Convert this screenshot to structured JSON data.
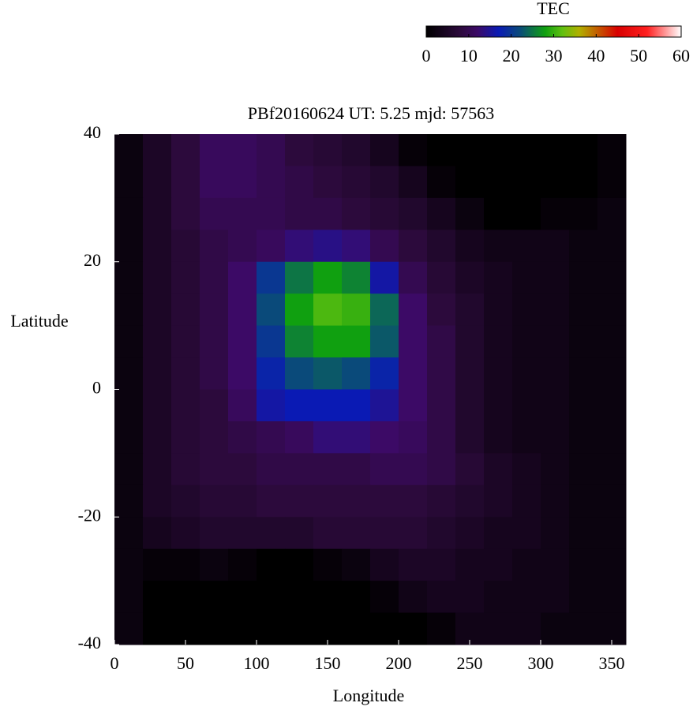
{
  "chart_data": {
    "type": "heatmap",
    "title": "PBf20160624  UT: 5.25  mjd: 57563",
    "x_label": "Longitude",
    "y_label": "Latitude",
    "colorbar_label": "TEC",
    "x": [
      10,
      30,
      50,
      70,
      90,
      110,
      130,
      150,
      170,
      190,
      210,
      230,
      250,
      270,
      290,
      310,
      330,
      350
    ],
    "y": [
      37.5,
      32.5,
      27.5,
      22.5,
      17.5,
      12.5,
      7.5,
      2.5,
      -2.5,
      -7.5,
      -12.5,
      -17.5,
      -22.5,
      -27.5,
      -32.5,
      -37.5
    ],
    "z": [
      [
        2,
        5,
        8,
        11,
        11,
        10,
        8,
        7,
        6,
        4,
        1,
        0,
        0,
        0,
        0,
        0,
        0,
        1
      ],
      [
        2,
        5,
        8,
        11,
        11,
        10,
        9,
        8,
        7,
        6,
        4,
        1,
        0,
        0,
        0,
        0,
        0,
        1
      ],
      [
        2,
        5,
        8,
        10,
        10,
        10,
        9,
        9,
        8,
        7,
        6,
        4,
        2,
        0,
        0,
        1,
        1,
        2
      ],
      [
        2,
        5,
        7,
        9,
        10,
        11,
        13,
        14,
        13,
        10,
        8,
        6,
        4,
        3,
        3,
        3,
        2,
        2
      ],
      [
        2,
        5,
        7,
        9,
        12,
        20,
        25,
        28,
        26,
        16,
        10,
        7,
        5,
        4,
        3,
        3,
        2,
        2
      ],
      [
        2,
        5,
        7,
        9,
        12,
        22,
        28,
        31,
        30,
        24,
        12,
        8,
        6,
        4,
        3,
        3,
        2,
        2
      ],
      [
        2,
        5,
        7,
        9,
        12,
        20,
        26,
        28,
        28,
        23,
        12,
        9,
        6,
        4,
        3,
        3,
        2,
        2
      ],
      [
        2,
        5,
        7,
        9,
        12,
        18,
        22,
        23,
        22,
        18,
        12,
        9,
        6,
        4,
        3,
        3,
        2,
        2
      ],
      [
        2,
        5,
        7,
        8,
        11,
        16,
        17,
        17,
        17,
        15,
        12,
        9,
        6,
        4,
        3,
        3,
        2,
        2
      ],
      [
        2,
        5,
        7,
        8,
        9,
        10,
        11,
        13,
        13,
        12,
        11,
        9,
        6,
        4,
        3,
        3,
        2,
        2
      ],
      [
        2,
        5,
        7,
        8,
        8,
        9,
        9,
        9,
        9,
        10,
        10,
        9,
        7,
        5,
        4,
        3,
        2,
        2
      ],
      [
        2,
        5,
        6,
        7,
        7,
        8,
        8,
        8,
        8,
        8,
        8,
        7,
        6,
        5,
        4,
        3,
        2,
        2
      ],
      [
        2,
        4,
        5,
        6,
        6,
        6,
        6,
        7,
        7,
        7,
        7,
        6,
        5,
        4,
        4,
        3,
        2,
        2
      ],
      [
        2,
        1,
        1,
        2,
        1,
        0,
        0,
        1,
        2,
        4,
        5,
        5,
        4,
        4,
        3,
        3,
        2,
        2
      ],
      [
        2,
        0,
        0,
        0,
        0,
        0,
        0,
        0,
        0,
        1,
        3,
        4,
        4,
        3,
        3,
        3,
        2,
        2
      ],
      [
        2,
        0,
        0,
        0,
        0,
        0,
        0,
        0,
        0,
        0,
        0,
        1,
        3,
        3,
        3,
        2,
        2,
        2
      ]
    ],
    "xlim": [
      0,
      360
    ],
    "ylim": [
      -40,
      40
    ],
    "xticks": [
      0,
      50,
      100,
      150,
      200,
      250,
      300,
      350
    ],
    "yticks": [
      -40,
      -20,
      0,
      20,
      40
    ],
    "cblim": [
      0,
      60
    ],
    "cbticks": [
      0,
      10,
      20,
      30,
      40,
      50,
      60
    ],
    "colormap": [
      {
        "value": 0,
        "color": "#000000"
      },
      {
        "value": 8,
        "color": "#2c0a3c"
      },
      {
        "value": 12,
        "color": "#3c0a66"
      },
      {
        "value": 17,
        "color": "#0a1ab4"
      },
      {
        "value": 22,
        "color": "#0a4a7a"
      },
      {
        "value": 28,
        "color": "#10a010"
      },
      {
        "value": 32,
        "color": "#60c010"
      },
      {
        "value": 36,
        "color": "#b0b000"
      },
      {
        "value": 45,
        "color": "#d80000"
      },
      {
        "value": 52,
        "color": "#ff2020"
      },
      {
        "value": 60,
        "color": "#ffffff"
      }
    ]
  }
}
